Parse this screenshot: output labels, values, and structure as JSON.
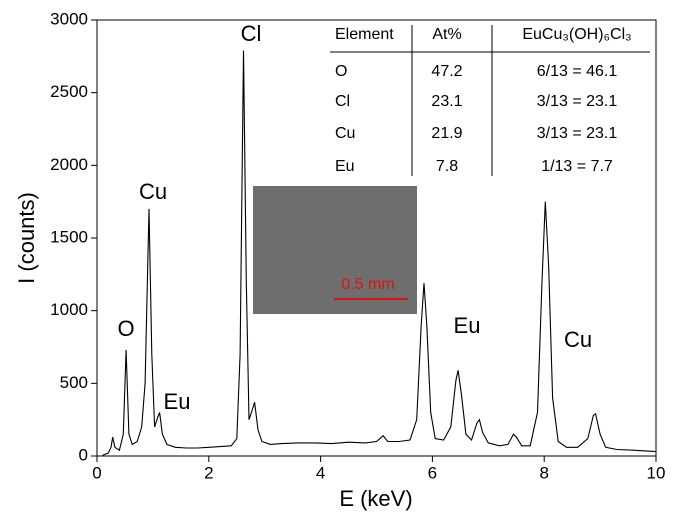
{
  "chart_data": {
    "type": "line",
    "x_label": "E (keV)",
    "y_label": "I (counts)",
    "xlim": [
      0,
      10
    ],
    "xticks": [
      0,
      2,
      4,
      6,
      8,
      10
    ],
    "ylim": [
      0,
      3000
    ],
    "yticks": [
      0,
      500,
      1000,
      1500,
      2000,
      2500,
      3000
    ],
    "color": "#000000",
    "x": [
      0.1,
      0.2,
      0.25,
      0.28,
      0.32,
      0.4,
      0.47,
      0.52,
      0.57,
      0.63,
      0.72,
      0.8,
      0.86,
      0.93,
      0.98,
      1.03,
      1.08,
      1.12,
      1.17,
      1.25,
      1.4,
      1.6,
      1.8,
      2.0,
      2.2,
      2.4,
      2.5,
      2.56,
      2.62,
      2.67,
      2.72,
      2.78,
      2.82,
      2.88,
      2.95,
      3.1,
      3.3,
      3.6,
      3.9,
      4.2,
      4.5,
      4.8,
      5.0,
      5.12,
      5.2,
      5.4,
      5.6,
      5.72,
      5.8,
      5.85,
      5.9,
      5.97,
      6.05,
      6.2,
      6.33,
      6.42,
      6.46,
      6.52,
      6.6,
      6.7,
      6.8,
      6.84,
      6.9,
      7.0,
      7.2,
      7.35,
      7.45,
      7.5,
      7.6,
      7.75,
      7.88,
      7.96,
      8.02,
      8.08,
      8.15,
      8.25,
      8.4,
      8.6,
      8.78,
      8.88,
      8.92,
      9.0,
      9.1,
      9.3,
      9.6,
      10
    ],
    "values": [
      5,
      20,
      60,
      130,
      60,
      40,
      150,
      730,
      150,
      80,
      100,
      200,
      500,
      1700,
      700,
      200,
      260,
      300,
      150,
      80,
      60,
      55,
      55,
      60,
      65,
      70,
      120,
      700,
      2790,
      1200,
      250,
      320,
      370,
      180,
      100,
      80,
      85,
      90,
      90,
      85,
      95,
      90,
      100,
      140,
      100,
      100,
      110,
      250,
      900,
      1190,
      900,
      300,
      120,
      110,
      200,
      520,
      590,
      420,
      150,
      110,
      230,
      250,
      160,
      90,
      70,
      80,
      150,
      130,
      70,
      70,
      300,
      1200,
      1750,
      1300,
      400,
      100,
      60,
      60,
      120,
      280,
      290,
      150,
      60,
      45,
      40,
      30
    ],
    "annotations": [
      "O",
      "Cu",
      "Eu",
      "Cl",
      "Eu",
      "Cu"
    ],
    "inset_image": {
      "scale_bar": "0.5 mm"
    },
    "table": {
      "header": [
        "Element",
        "At%",
        "EuCu₃(OH)₆Cl₃"
      ],
      "rows": [
        [
          "O",
          47.2,
          "6/13 = 46.1"
        ],
        [
          "Cl",
          23.1,
          "3/13 = 23.1"
        ],
        [
          "Cu",
          21.9,
          "3/13 = 23.1"
        ],
        [
          "Eu",
          7.8,
          "1/13 = 7.7"
        ]
      ]
    }
  }
}
